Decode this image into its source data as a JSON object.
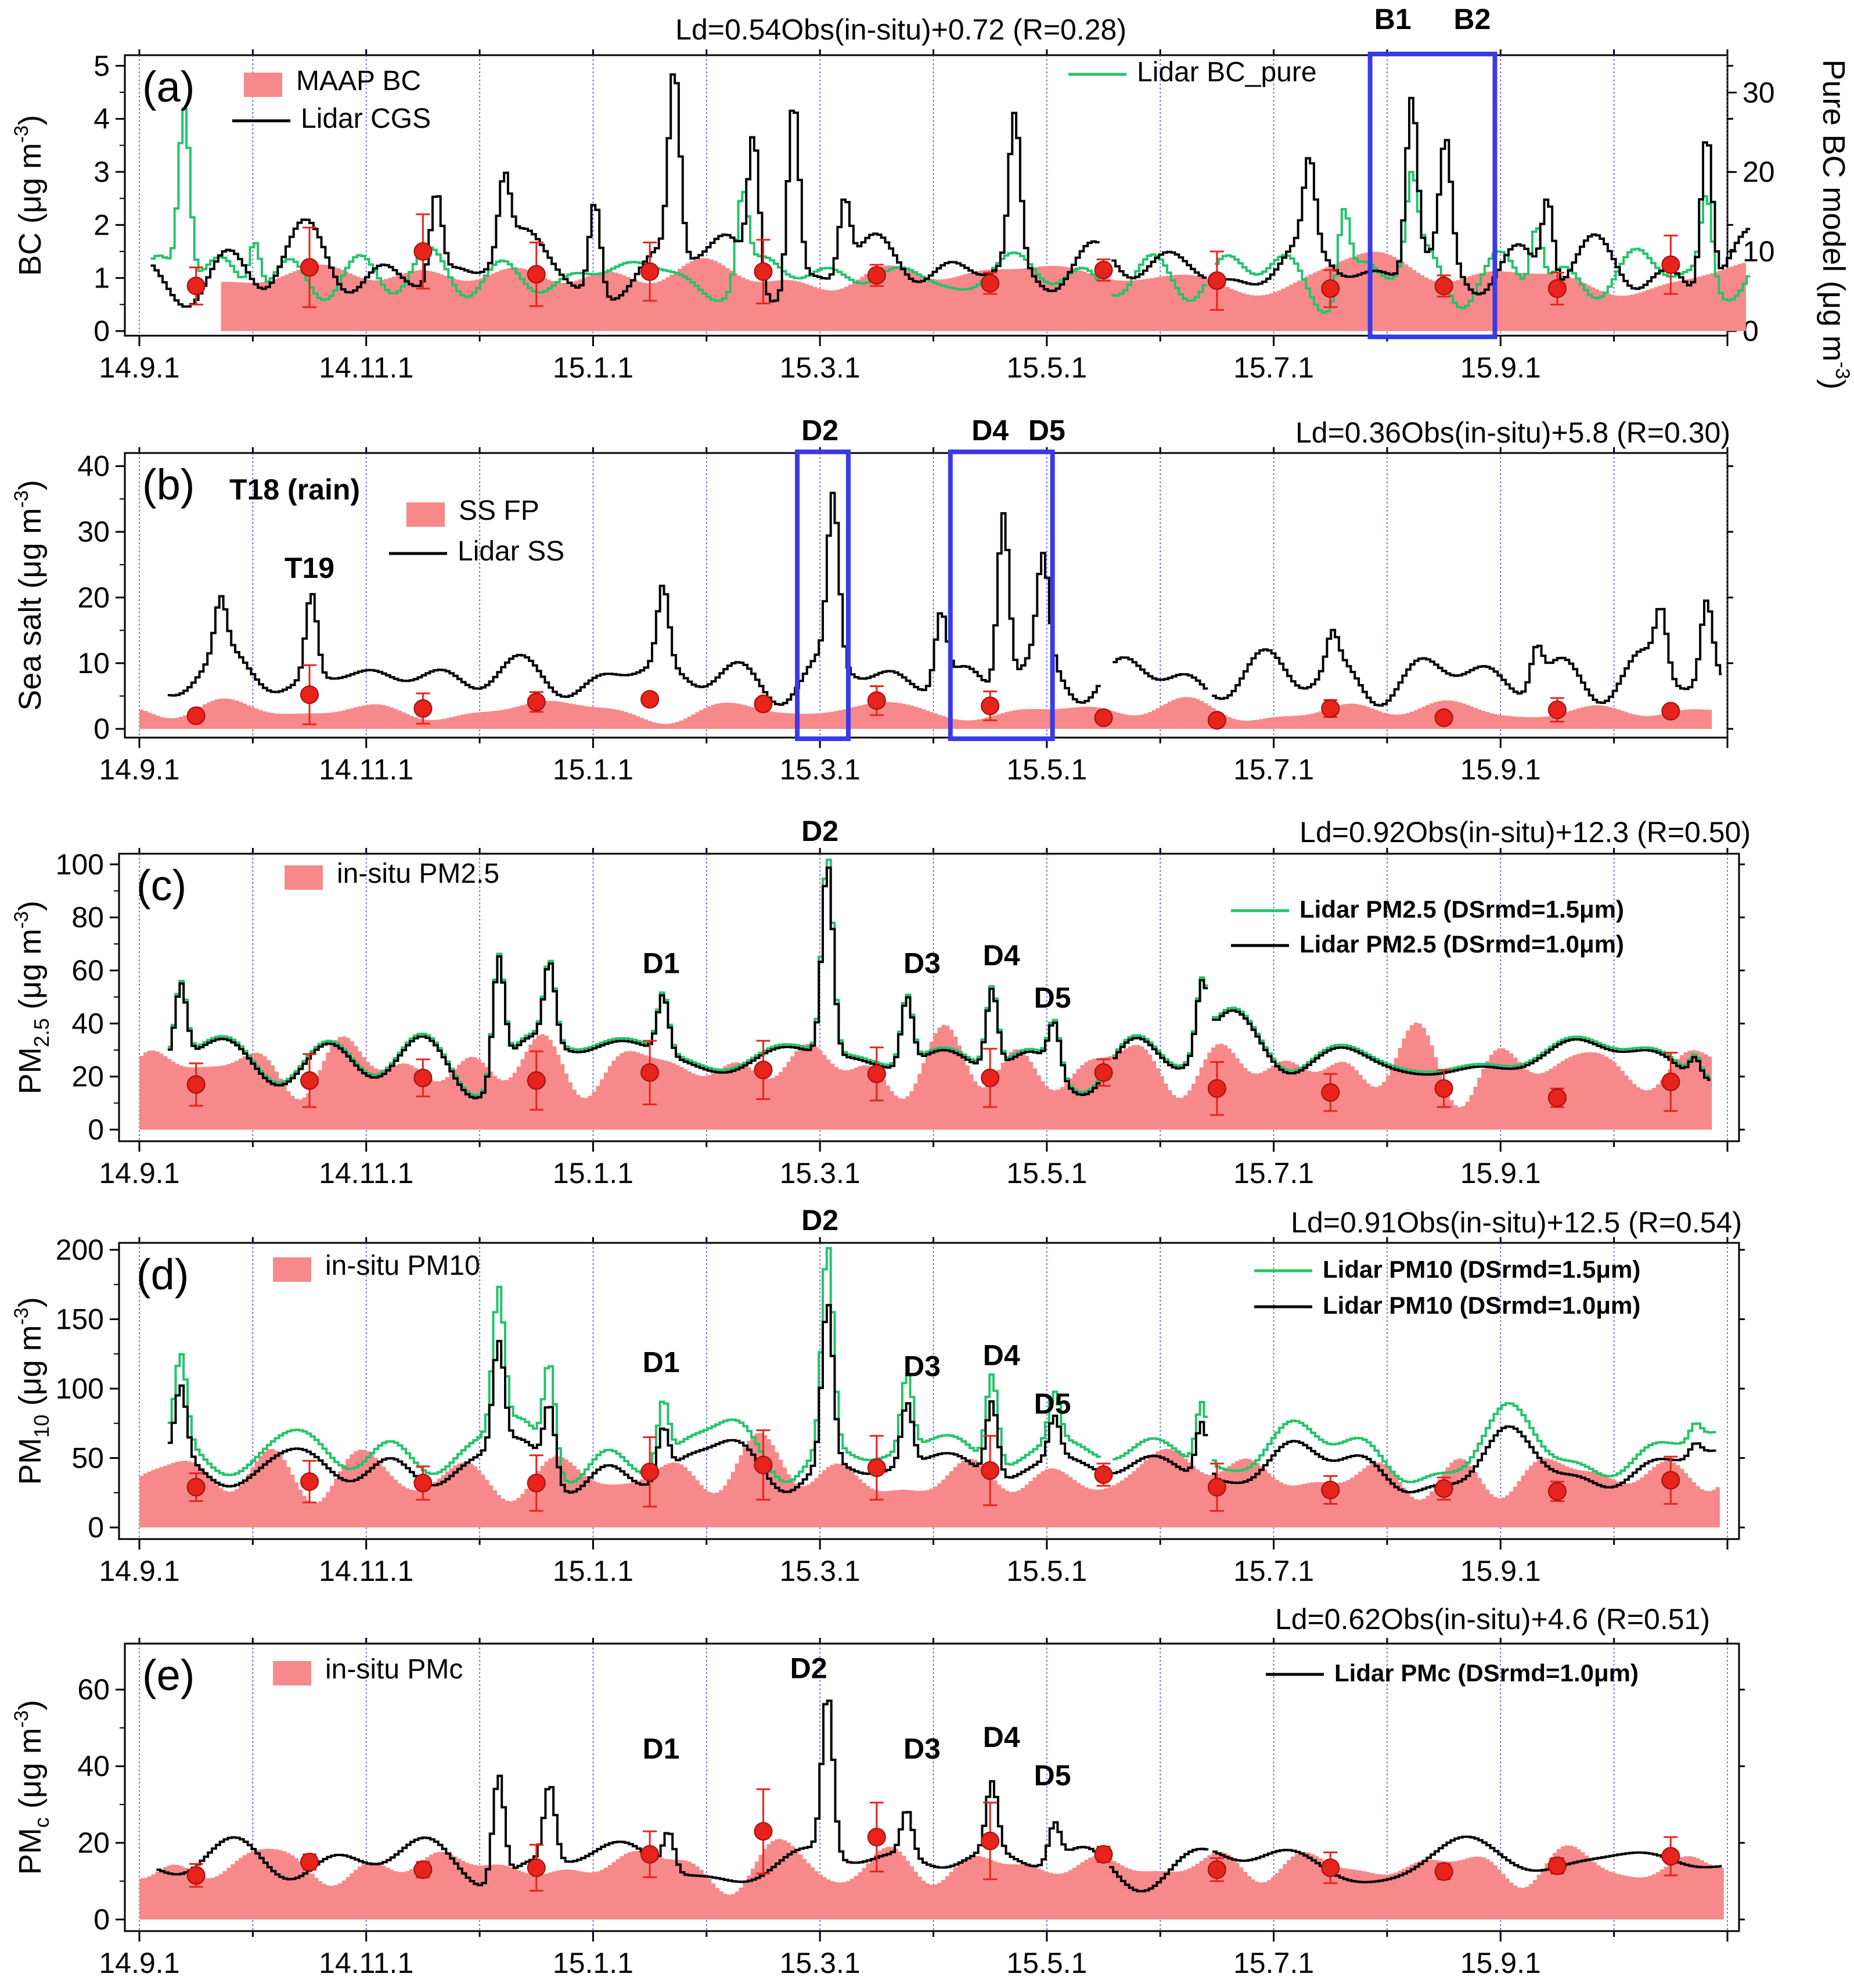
{
  "figure": {
    "months": [
      "14.9.1",
      "14.11.1",
      "15.1.1",
      "15.3.1",
      "15.5.1",
      "15.7.1",
      "15.9.1"
    ],
    "colors": {
      "insitu": "#f7898a",
      "lidar": "#000000",
      "green": "#22c46a",
      "marker": "#e8231b",
      "box": "#3a3ae6",
      "vgrid": "#4444dd"
    }
  },
  "chart_data": [
    {
      "id": "a",
      "type": "bar+line",
      "panel_label": "(a)",
      "equation": "Ld=0.54Obs(in-situ)+0.72 (R=0.28)",
      "ylabel_main": "BC (μg m",
      "ylabel_sup": "-3",
      "ylabel_close": ")",
      "ylim": [
        0,
        5.2
      ],
      "yticks": [
        0,
        1,
        2,
        3,
        4,
        5
      ],
      "right_axis": {
        "label_main": "Pure BC model (μg m",
        "label_sup": "-3",
        "label_close": ")",
        "ylim": [
          0,
          34.7
        ],
        "yticks": [
          0,
          10,
          20,
          30
        ]
      },
      "legend": [
        {
          "label": "MAAP BC",
          "kind": "bar"
        },
        {
          "label": "Lidar CGS",
          "kind": "black"
        },
        {
          "label": "Lidar BC_pure",
          "kind": "green"
        }
      ],
      "events": [
        {
          "label": "B1",
          "month": 11.05
        },
        {
          "label": "B2",
          "month": 11.75
        }
      ],
      "boxes": [
        [
          10.85,
          11.95
        ]
      ],
      "insitu": {
        "start": 0.72,
        "end": 14.15,
        "level": 1.05,
        "amp": 0.35,
        "seed": 11
      },
      "lidar": {
        "start": 0.1,
        "end": 14.2,
        "base": 1.2,
        "amp": 0.6,
        "seed": 3,
        "peaks": [
          [
            2.6,
            1.6
          ],
          [
            3.2,
            1.4
          ],
          [
            4.0,
            1.8
          ],
          [
            4.7,
            3.5
          ],
          [
            5.4,
            2.7
          ],
          [
            5.75,
            3.5
          ],
          [
            6.2,
            1.4
          ],
          [
            7.7,
            2.8
          ],
          [
            10.3,
            1.6
          ],
          [
            11.2,
            3.3
          ],
          [
            11.5,
            2.2
          ],
          [
            12.4,
            1.6
          ],
          [
            13.8,
            3.0
          ]
        ]
      },
      "green": {
        "start": 0.1,
        "end": 14.2,
        "base": 1.05,
        "amp": 0.5,
        "seed": 7,
        "peaks": [
          [
            0.38,
            3.2
          ],
          [
            1.0,
            1.0
          ],
          [
            5.3,
            1.6
          ],
          [
            10.6,
            1.5
          ],
          [
            11.2,
            1.6
          ],
          [
            12.3,
            1.2
          ],
          [
            13.8,
            1.6
          ]
        ]
      },
      "markers": [
        {
          "month": 0.5,
          "value": 0.85,
          "err": 0.35
        },
        {
          "month": 1.5,
          "value": 1.2,
          "err": 0.75
        },
        {
          "month": 2.5,
          "value": 1.5,
          "err": 0.7
        },
        {
          "month": 3.5,
          "value": 1.07,
          "err": 0.6
        },
        {
          "month": 4.5,
          "value": 1.12,
          "err": 0.55
        },
        {
          "month": 5.5,
          "value": 1.12,
          "err": 0.6
        },
        {
          "month": 6.5,
          "value": 1.05,
          "err": 0.2
        },
        {
          "month": 7.5,
          "value": 0.9,
          "err": 0.2
        },
        {
          "month": 8.5,
          "value": 1.15,
          "err": 0.2
        },
        {
          "month": 9.5,
          "value": 0.95,
          "err": 0.55
        },
        {
          "month": 10.5,
          "value": 0.8,
          "err": 0.35
        },
        {
          "month": 11.5,
          "value": 0.85,
          "err": 0.2
        },
        {
          "month": 12.5,
          "value": 0.8,
          "err": 0.3
        },
        {
          "month": 13.5,
          "value": 1.25,
          "err": 0.55
        }
      ]
    },
    {
      "id": "b",
      "type": "bar+line",
      "panel_label": "(b)",
      "equation": "Ld=0.36Obs(in-situ)+5.8 (R=0.30)",
      "ylabel_main": "Sea salt (μg m",
      "ylabel_sup": "-3",
      "ylabel_close": ")",
      "ylim": [
        0,
        42
      ],
      "yticks": [
        0,
        10,
        20,
        30,
        40
      ],
      "title_extra": "T18 (rain)",
      "legend": [
        {
          "label": "SS FP",
          "kind": "bar"
        },
        {
          "label": "Lidar SS",
          "kind": "black"
        }
      ],
      "events": [
        {
          "label": "D2",
          "month": 6.0
        },
        {
          "label": "D4",
          "month": 7.5
        },
        {
          "label": "D5",
          "month": 8.0
        }
      ],
      "inplot_events": [
        {
          "label": "T19",
          "month": 1.5,
          "value": 23
        }
      ],
      "boxes": [
        [
          5.8,
          6.25
        ],
        [
          7.15,
          8.05
        ]
      ],
      "insitu": {
        "start": 0.0,
        "end": 13.85,
        "level": 2.8,
        "amp": 2.0,
        "seed": 21
      },
      "lidar": {
        "start": 0.25,
        "end": 13.95,
        "base": 8.0,
        "amp": 4.0,
        "seed": 5,
        "peaks": [
          [
            0.7,
            8.0
          ],
          [
            1.5,
            13.0
          ],
          [
            4.6,
            12.0
          ],
          [
            6.1,
            25.0
          ],
          [
            7.05,
            11.0
          ],
          [
            7.6,
            27.0
          ],
          [
            7.95,
            15.0
          ],
          [
            10.5,
            5.0
          ],
          [
            12.3,
            6.0
          ],
          [
            13.4,
            9.0
          ],
          [
            13.8,
            12.0
          ]
        ]
      },
      "markers": [
        {
          "month": 0.5,
          "value": 2.0,
          "err": 0.5
        },
        {
          "month": 1.5,
          "value": 5.2,
          "err": 4.5
        },
        {
          "month": 2.5,
          "value": 3.1,
          "err": 2.3
        },
        {
          "month": 3.5,
          "value": 4.1,
          "err": 1.5
        },
        {
          "month": 4.5,
          "value": 4.5,
          "err": 0.8
        },
        {
          "month": 5.5,
          "value": 3.8,
          "err": 0.8
        },
        {
          "month": 6.5,
          "value": 4.3,
          "err": 2.2
        },
        {
          "month": 7.5,
          "value": 3.5,
          "err": 2.2
        },
        {
          "month": 8.5,
          "value": 1.7,
          "err": 0.3
        },
        {
          "month": 9.5,
          "value": 1.3,
          "err": 0.3
        },
        {
          "month": 10.5,
          "value": 3.1,
          "err": 1.3
        },
        {
          "month": 11.5,
          "value": 1.7,
          "err": 0.3
        },
        {
          "month": 12.5,
          "value": 2.9,
          "err": 1.8
        },
        {
          "month": 13.5,
          "value": 2.7,
          "err": 0.3
        }
      ]
    },
    {
      "id": "c",
      "type": "bar+line",
      "panel_label": "(c)",
      "equation": "Ld=0.92Obs(in-situ)+12.3 (R=0.50)",
      "ylabel_main": "PM",
      "ylabel_sub": "2.5",
      "ylabel_rest": " (μg m",
      "ylabel_sup": "-3",
      "ylabel_close": ")",
      "ylim": [
        0,
        104
      ],
      "yticks": [
        0,
        20,
        40,
        60,
        80,
        100
      ],
      "legend": [
        {
          "label": "in-situ PM2.5",
          "kind": "bar"
        },
        {
          "label": "Lidar PM2.5 (DSrmd=1.5μm)",
          "kind": "green"
        },
        {
          "label": "Lidar PM2.5 (DSrmd=1.0μm)",
          "kind": "black"
        }
      ],
      "events": [
        {
          "label": "D2",
          "month": 6.0
        }
      ],
      "inplot_events": [
        {
          "label": "D1",
          "month": 4.6,
          "value": 59
        },
        {
          "label": "D3",
          "month": 6.9,
          "value": 59
        },
        {
          "label": "D4",
          "month": 7.6,
          "value": 62
        },
        {
          "label": "D5",
          "month": 8.05,
          "value": 46
        }
      ],
      "insitu": {
        "start": 0.0,
        "end": 13.85,
        "level": 24,
        "amp": 9,
        "seed": 31
      },
      "lidar": {
        "start": 0.25,
        "end": 13.85,
        "base": 27,
        "amp": 12,
        "seed": 9,
        "peaks": [
          [
            0.35,
            28
          ],
          [
            3.15,
            45
          ],
          [
            3.6,
            30
          ],
          [
            4.6,
            22
          ],
          [
            6.05,
            72
          ],
          [
            6.75,
            26
          ],
          [
            7.5,
            30
          ],
          [
            8.05,
            18
          ],
          [
            9.35,
            25
          ],
          [
            13.7,
            8
          ]
        ]
      },
      "green": {
        "start": 0.25,
        "end": 13.85,
        "base": 28,
        "amp": 12,
        "seed": 9,
        "peaks": [
          [
            0.35,
            28
          ],
          [
            3.15,
            45
          ],
          [
            3.6,
            30
          ],
          [
            4.6,
            22
          ],
          [
            6.05,
            74
          ],
          [
            6.75,
            26
          ],
          [
            7.5,
            30
          ],
          [
            8.05,
            18
          ],
          [
            9.35,
            25
          ],
          [
            13.7,
            8
          ]
        ]
      },
      "markers": [
        {
          "month": 0.5,
          "value": 17,
          "err": 8
        },
        {
          "month": 1.5,
          "value": 18.5,
          "err": 10
        },
        {
          "month": 2.5,
          "value": 19.5,
          "err": 7
        },
        {
          "month": 3.5,
          "value": 18.5,
          "err": 11
        },
        {
          "month": 4.5,
          "value": 21.5,
          "err": 12
        },
        {
          "month": 5.5,
          "value": 22.5,
          "err": 11
        },
        {
          "month": 6.5,
          "value": 21,
          "err": 10
        },
        {
          "month": 7.5,
          "value": 19.5,
          "err": 11
        },
        {
          "month": 8.5,
          "value": 21.5,
          "err": 5
        },
        {
          "month": 9.5,
          "value": 15.5,
          "err": 10
        },
        {
          "month": 10.5,
          "value": 14,
          "err": 7
        },
        {
          "month": 11.5,
          "value": 15.5,
          "err": 7
        },
        {
          "month": 12.5,
          "value": 12,
          "err": 3.5
        },
        {
          "month": 13.5,
          "value": 18,
          "err": 11
        }
      ]
    },
    {
      "id": "d",
      "type": "bar+line",
      "panel_label": "(d)",
      "equation": "Ld=0.91Obs(in-situ)+12.5 (R=0.54)",
      "ylabel_main": "PM",
      "ylabel_sub": "10",
      "ylabel_rest": " (μg m",
      "ylabel_sup": "-3",
      "ylabel_close": ")",
      "ylim": [
        0,
        205
      ],
      "yticks": [
        0,
        50,
        100,
        150,
        200
      ],
      "legend": [
        {
          "label": "in-situ PM10",
          "kind": "bar"
        },
        {
          "label": "Lidar PM10 (DSrmd=1.5μm)",
          "kind": "green"
        },
        {
          "label": "Lidar PM10 (DSrmd=1.0μm)",
          "kind": "black"
        }
      ],
      "events": [
        {
          "label": "D2",
          "month": 6.0
        }
      ],
      "inplot_events": [
        {
          "label": "D1",
          "month": 4.6,
          "value": 112
        },
        {
          "label": "D3",
          "month": 6.9,
          "value": 109
        },
        {
          "label": "D4",
          "month": 7.6,
          "value": 117
        },
        {
          "label": "D5",
          "month": 8.05,
          "value": 82
        }
      ],
      "insitu": {
        "start": 0.0,
        "end": 13.9,
        "level": 38,
        "amp": 15,
        "seed": 41
      },
      "lidar": {
        "start": 0.25,
        "end": 13.9,
        "base": 44,
        "amp": 20,
        "seed": 13,
        "peaks": [
          [
            0.35,
            50
          ],
          [
            3.15,
            75
          ],
          [
            3.6,
            50
          ],
          [
            4.6,
            35
          ],
          [
            6.05,
            115
          ],
          [
            6.75,
            45
          ],
          [
            7.5,
            55
          ],
          [
            8.05,
            30
          ],
          [
            9.35,
            40
          ],
          [
            13.7,
            10
          ]
        ]
      },
      "green": {
        "start": 0.25,
        "end": 13.9,
        "base": 55,
        "amp": 24,
        "seed": 13,
        "peaks": [
          [
            0.35,
            60
          ],
          [
            3.15,
            100
          ],
          [
            3.6,
            70
          ],
          [
            4.6,
            45
          ],
          [
            6.05,
            145
          ],
          [
            6.75,
            55
          ],
          [
            7.5,
            65
          ],
          [
            8.05,
            35
          ],
          [
            9.35,
            45
          ],
          [
            13.7,
            12
          ]
        ]
      },
      "markers": [
        {
          "month": 0.5,
          "value": 29,
          "err": 10
        },
        {
          "month": 1.5,
          "value": 33,
          "err": 15
        },
        {
          "month": 2.5,
          "value": 32,
          "err": 12
        },
        {
          "month": 3.5,
          "value": 32,
          "err": 20
        },
        {
          "month": 4.5,
          "value": 40,
          "err": 25
        },
        {
          "month": 5.5,
          "value": 45,
          "err": 25
        },
        {
          "month": 6.5,
          "value": 43,
          "err": 23
        },
        {
          "month": 7.5,
          "value": 41,
          "err": 25
        },
        {
          "month": 8.5,
          "value": 38,
          "err": 8
        },
        {
          "month": 9.5,
          "value": 29,
          "err": 17
        },
        {
          "month": 10.5,
          "value": 27,
          "err": 10
        },
        {
          "month": 11.5,
          "value": 28,
          "err": 8
        },
        {
          "month": 12.5,
          "value": 26,
          "err": 7
        },
        {
          "month": 13.5,
          "value": 34,
          "err": 17
        }
      ]
    },
    {
      "id": "e",
      "type": "bar+line",
      "panel_label": "(e)",
      "equation": "Ld=0.62Obs(in-situ)+4.6 (R=0.51)",
      "ylabel_main": "PM",
      "ylabel_sub": "c",
      "ylabel_rest": " (μg m",
      "ylabel_sup": "-3",
      "ylabel_close": ")",
      "ylim": [
        0,
        72
      ],
      "yticks": [
        0,
        20,
        40,
        60
      ],
      "legend": [
        {
          "label": "in-situ PMc",
          "kind": "bar"
        },
        {
          "label": "Lidar PMc (DSrmd=1.0μm)",
          "kind": "black"
        }
      ],
      "events": [],
      "inplot_events": [
        {
          "label": "D1",
          "month": 4.6,
          "value": 42
        },
        {
          "label": "D2",
          "month": 5.9,
          "value": 63
        },
        {
          "label": "D3",
          "month": 6.9,
          "value": 42
        },
        {
          "label": "D4",
          "month": 7.6,
          "value": 45
        },
        {
          "label": "D5",
          "month": 8.05,
          "value": 35
        }
      ],
      "insitu": {
        "start": 0.0,
        "end": 13.95,
        "level": 14,
        "amp": 5,
        "seed": 51
      },
      "lidar": {
        "start": 0.15,
        "end": 13.95,
        "base": 15,
        "amp": 6,
        "seed": 17,
        "peaks": [
          [
            3.15,
            28
          ],
          [
            3.6,
            20
          ],
          [
            4.65,
            10
          ],
          [
            6.05,
            42
          ],
          [
            6.75,
            12
          ],
          [
            7.5,
            18
          ],
          [
            8.05,
            10
          ]
        ]
      },
      "markers": [
        {
          "month": 0.5,
          "value": 11.5,
          "err": 3
        },
        {
          "month": 1.5,
          "value": 15,
          "err": 2
        },
        {
          "month": 2.5,
          "value": 13,
          "err": 2
        },
        {
          "month": 3.5,
          "value": 13.5,
          "err": 6
        },
        {
          "month": 4.5,
          "value": 17,
          "err": 6
        },
        {
          "month": 5.5,
          "value": 23,
          "err": 11
        },
        {
          "month": 6.5,
          "value": 21.5,
          "err": 9
        },
        {
          "month": 7.5,
          "value": 20.5,
          "err": 10
        },
        {
          "month": 8.5,
          "value": 17,
          "err": 2
        },
        {
          "month": 9.5,
          "value": 13,
          "err": 3
        },
        {
          "month": 10.5,
          "value": 13.5,
          "err": 4
        },
        {
          "month": 11.5,
          "value": 12.5,
          "err": 2
        },
        {
          "month": 12.5,
          "value": 14,
          "err": 2
        },
        {
          "month": 13.5,
          "value": 16.5,
          "err": 5
        }
      ]
    }
  ]
}
